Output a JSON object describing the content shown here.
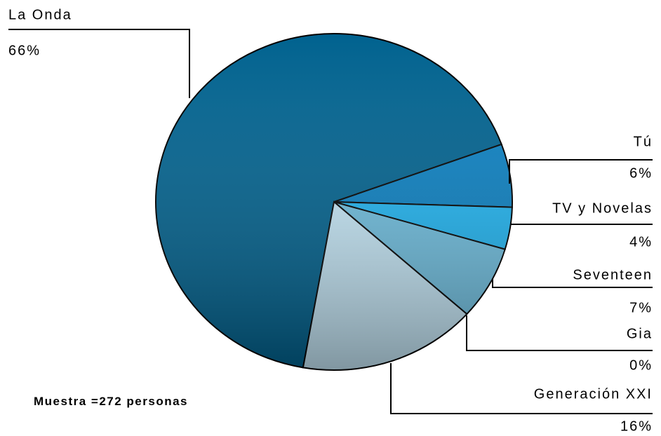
{
  "chart_data": {
    "type": "pie",
    "categories": [
      "La Onda",
      "Tú",
      "TV y Novelas",
      "Seventeen",
      "Gia",
      "Generación XXI"
    ],
    "values": [
      66,
      6,
      4,
      7,
      0,
      16
    ],
    "value_labels": [
      "66%",
      "6%",
      "4%",
      "7%",
      "0%",
      "16%"
    ],
    "colors": [
      "#00628f",
      "#0a80c2",
      "#1fb5f2",
      "#6fbfe0",
      "#3d6f8c",
      "#c6e8f8"
    ],
    "annotation": "Muestra =272 personas"
  }
}
